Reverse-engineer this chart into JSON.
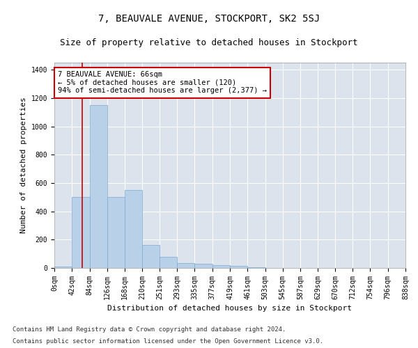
{
  "title": "7, BEAUVALE AVENUE, STOCKPORT, SK2 5SJ",
  "subtitle": "Size of property relative to detached houses in Stockport",
  "xlabel": "Distribution of detached houses by size in Stockport",
  "ylabel": "Number of detached properties",
  "bar_color": "#b8d0e8",
  "bar_edge_color": "#7aaad0",
  "background_color": "#dde3ed",
  "grid_color": "#ffffff",
  "annotation_text": "7 BEAUVALE AVENUE: 66sqm\n← 5% of detached houses are smaller (120)\n94% of semi-detached houses are larger (2,377) →",
  "annotation_box_color": "#cc0000",
  "vline_x": 66,
  "vline_color": "#cc0000",
  "ylim": [
    0,
    1450
  ],
  "bin_edges": [
    0,
    42,
    84,
    126,
    168,
    210,
    251,
    293,
    335,
    377,
    419,
    461,
    503,
    545,
    587,
    629,
    670,
    712,
    754,
    796,
    838
  ],
  "bar_heights": [
    10,
    500,
    1150,
    500,
    550,
    160,
    80,
    35,
    30,
    20,
    15,
    5,
    2,
    1,
    0,
    0,
    0,
    0,
    0,
    0
  ],
  "xtick_labels": [
    "0sqm",
    "42sqm",
    "84sqm",
    "126sqm",
    "168sqm",
    "210sqm",
    "251sqm",
    "293sqm",
    "335sqm",
    "377sqm",
    "419sqm",
    "461sqm",
    "503sqm",
    "545sqm",
    "587sqm",
    "629sqm",
    "670sqm",
    "712sqm",
    "754sqm",
    "796sqm",
    "838sqm"
  ],
  "ytick_values": [
    0,
    200,
    400,
    600,
    800,
    1000,
    1200,
    1400
  ],
  "footer_line1": "Contains HM Land Registry data © Crown copyright and database right 2024.",
  "footer_line2": "Contains public sector information licensed under the Open Government Licence v3.0.",
  "title_fontsize": 10,
  "subtitle_fontsize": 9,
  "xlabel_fontsize": 8,
  "ylabel_fontsize": 8,
  "tick_fontsize": 7,
  "footer_fontsize": 6.5,
  "annot_fontsize": 7.5
}
